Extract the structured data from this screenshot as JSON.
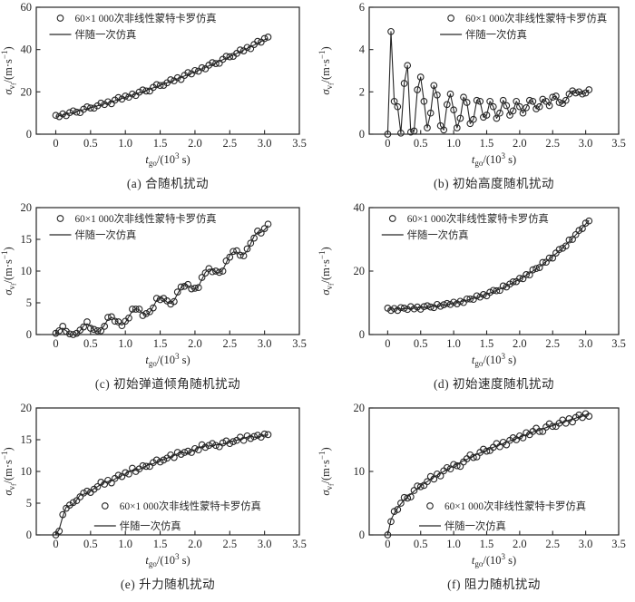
{
  "figure": {
    "background": "#ffffff",
    "ink": "#262626",
    "legend": {
      "mc_label": "60×1 000次非线性蒙特卡罗仿真",
      "adjoint_label": "伴随一次仿真"
    },
    "xlabel_parts": [
      {
        "t": "t",
        "s": "it"
      },
      {
        "t": "go",
        "s": "sub"
      },
      {
        "t": "/(10",
        "s": "n"
      },
      {
        "t": "3",
        "s": "sup"
      },
      {
        "t": " s)",
        "s": "n"
      }
    ],
    "ylabel_parts": [
      {
        "t": "σ",
        "s": "it"
      },
      {
        "t": "v",
        "s": "sub"
      },
      {
        "t": "f",
        "s": "subsub"
      },
      {
        "t": "/(m·s",
        "s": "n"
      },
      {
        "t": "−1",
        "s": "sup"
      },
      {
        "t": ")",
        "s": "n"
      }
    ]
  },
  "x_axis": {
    "xlim": [
      -0.28,
      3.5
    ],
    "xticks": [
      0,
      0.5,
      1,
      1.5,
      2,
      2.5,
      3,
      3.5
    ],
    "xtick_labels": [
      "0",
      "0.5",
      "1.0",
      "1.5",
      "2.0",
      "2.5",
      "3.0",
      "3.5"
    ]
  },
  "x": [
    0,
    0.05,
    0.1,
    0.15,
    0.2,
    0.25,
    0.3,
    0.35,
    0.4,
    0.45,
    0.5,
    0.55,
    0.6,
    0.65,
    0.7,
    0.75,
    0.8,
    0.85,
    0.9,
    0.95,
    1,
    1.05,
    1.1,
    1.15,
    1.2,
    1.25,
    1.3,
    1.35,
    1.4,
    1.45,
    1.5,
    1.55,
    1.6,
    1.65,
    1.7,
    1.75,
    1.8,
    1.85,
    1.9,
    1.95,
    2,
    2.05,
    2.1,
    2.15,
    2.2,
    2.25,
    2.3,
    2.35,
    2.4,
    2.45,
    2.5,
    2.55,
    2.6,
    2.65,
    2.7,
    2.75,
    2.8,
    2.85,
    2.9,
    2.95,
    3,
    3.05
  ],
  "chart_data": [
    {
      "id": "a",
      "type": "line+scatter",
      "caption": "(a) 合随机扰动",
      "xlabel": "t_go/(10^3 s)",
      "ylabel": "σ_vf/(m·s^-1)",
      "ylim": [
        0,
        60
      ],
      "yticks": [
        0,
        20,
        40,
        60
      ],
      "ytick_labels": [
        "0",
        "20",
        "40",
        "60"
      ],
      "legend": {
        "x_frac": 0.05,
        "rows": [
          12,
          30
        ]
      },
      "mc": [
        8.9,
        8.3,
        9.6,
        8.8,
        10.2,
        11.0,
        10.4,
        10.2,
        11.8,
        12.9,
        12.4,
        12.3,
        13.4,
        14.7,
        14.0,
        15.3,
        14.4,
        16.1,
        17.3,
        16.6,
        18.0,
        17.5,
        19.0,
        18.3,
        19.9,
        20.9,
        20.4,
        20.4,
        22.1,
        23.4,
        23.0,
        23.1,
        24.3,
        25.7,
        25.2,
        26.7,
        25.9,
        27.8,
        29.1,
        28.5,
        30.1,
        29.8,
        31.4,
        30.9,
        32.6,
        33.8,
        33.4,
        33.5,
        35.4,
        36.8,
        36.6,
        36.8,
        38.2,
        39.8,
        39.4,
        41.0,
        40.4,
        42.4,
        43.9,
        43.5,
        45.2,
        45.9
      ],
      "adjoint": [
        8.3,
        8.7,
        9.1,
        9.5,
        9.9,
        10.3,
        10.7,
        11.1,
        11.6,
        12.0,
        12.5,
        12.9,
        13.4,
        13.9,
        14.4,
        14.8,
        15.3,
        15.8,
        16.4,
        16.9,
        17.4,
        17.9,
        18.5,
        19.0,
        19.6,
        20.1,
        20.7,
        21.3,
        21.9,
        22.5,
        23.1,
        23.7,
        24.3,
        24.9,
        25.6,
        26.2,
        26.8,
        27.5,
        28.2,
        28.8,
        29.5,
        30.2,
        30.9,
        31.6,
        32.3,
        33.0,
        33.7,
        34.4,
        35.2,
        35.9,
        36.7,
        37.4,
        38.2,
        39.0,
        39.8,
        40.5,
        41.3,
        42.1,
        43.0,
        43.8,
        44.6,
        45.4
      ]
    },
    {
      "id": "b",
      "type": "line+scatter",
      "caption": "(b) 初始高度随机扰动",
      "xlabel": "t_go/(10^3 s)",
      "ylabel": "σ_vf/(m·s^-1)",
      "ylim": [
        0,
        6
      ],
      "yticks": [
        0,
        2,
        4,
        6
      ],
      "ytick_labels": [
        "0",
        "2",
        "4",
        "6"
      ],
      "legend": {
        "x_frac": 0.284,
        "rows": [
          12,
          30
        ]
      },
      "mc": [
        0.0,
        4.85,
        1.55,
        1.3,
        0.05,
        2.4,
        3.25,
        0.1,
        0.15,
        2.1,
        2.7,
        1.55,
        0.3,
        1.0,
        2.3,
        1.85,
        0.4,
        0.2,
        1.4,
        1.9,
        1.15,
        0.3,
        0.75,
        1.75,
        1.5,
        0.5,
        0.7,
        1.6,
        1.55,
        0.8,
        0.9,
        1.55,
        1.3,
        0.75,
        1.0,
        1.6,
        1.35,
        0.9,
        1.1,
        1.55,
        1.3,
        1.0,
        1.25,
        1.6,
        1.55,
        1.2,
        1.3,
        1.65,
        1.55,
        1.35,
        1.75,
        1.8,
        1.5,
        1.45,
        1.6,
        1.9,
        2.05,
        1.95,
        2.0,
        1.9,
        1.95,
        2.1
      ]
    },
    {
      "id": "c",
      "type": "line+scatter",
      "caption": "(c) 初始弹道倾角随机扰动",
      "xlabel": "t_go/(10^3 s)",
      "ylabel": "σ_vf/(m·s^-1)",
      "ylim": [
        0,
        20
      ],
      "yticks": [
        0,
        5,
        10,
        15,
        20
      ],
      "ytick_labels": [
        "0",
        "5",
        "10",
        "15",
        "20"
      ],
      "legend": {
        "x_frac": 0.05,
        "rows": [
          12,
          30
        ]
      },
      "mc": [
        0.2,
        0.6,
        1.3,
        0.5,
        0.1,
        0.0,
        0.2,
        0.7,
        1.2,
        2.0,
        1.0,
        0.8,
        0.6,
        0.6,
        1.3,
        2.7,
        2.8,
        2.1,
        2.0,
        1.4,
        2.1,
        2.6,
        4.0,
        4.0,
        4.0,
        3.0,
        3.3,
        3.6,
        4.2,
        5.7,
        5.5,
        5.7,
        5.3,
        4.8,
        5.2,
        6.7,
        7.5,
        7.6,
        7.9,
        7.2,
        7.3,
        7.4,
        9.0,
        9.7,
        10.4,
        9.9,
        10.0,
        9.8,
        10.0,
        11.6,
        12.2,
        13.1,
        13.2,
        12.5,
        12.4,
        13.5,
        14.4,
        15.2,
        16.3,
        16.0,
        16.7,
        17.4
      ],
      "adjoint": [
        0.0,
        0.8,
        1.0,
        0.6,
        0.0,
        0.0,
        0.0,
        0.6,
        1.4,
        1.7,
        1.3,
        0.7,
        0.4,
        0.7,
        1.5,
        2.4,
        2.7,
        2.4,
        1.8,
        1.5,
        1.9,
        2.8,
        3.7,
        4.1,
        3.9,
        3.3,
        3.1,
        3.5,
        4.4,
        5.4,
        5.8,
        5.6,
        5.1,
        4.9,
        5.4,
        6.4,
        7.4,
        7.9,
        7.7,
        7.3,
        7.1,
        7.6,
        8.7,
        9.8,
        10.3,
        10.2,
        9.8,
        9.7,
        10.2,
        11.3,
        12.5,
        13.0,
        13.0,
        12.6,
        12.6,
        13.2,
        14.3,
        15.5,
        16.1,
        16.1,
        16.5,
        17.2
      ]
    },
    {
      "id": "d",
      "type": "line+scatter",
      "caption": "(d) 初始速度随机扰动",
      "xlabel": "t_go/(10^3 s)",
      "ylabel": "σ_vf/(m·s^-1)",
      "ylim": [
        0,
        40
      ],
      "yticks": [
        0,
        20,
        40
      ],
      "ytick_labels": [
        "0",
        "20",
        "40"
      ],
      "legend": {
        "x_frac": 0.05,
        "rows": [
          12,
          30
        ]
      },
      "mc": [
        8.3,
        7.6,
        8.2,
        7.6,
        8.5,
        8.3,
        7.9,
        8.8,
        8.1,
        8.7,
        8.0,
        8.8,
        9.1,
        8.7,
        8.5,
        9.5,
        8.9,
        9.4,
        9.8,
        9.5,
        10.2,
        9.7,
        10.5,
        10.1,
        11.2,
        11.2,
        11.1,
        12.2,
        11.8,
        12.6,
        12.2,
        13.3,
        13.9,
        13.8,
        13.9,
        15.3,
        15.0,
        15.9,
        16.6,
        16.7,
        17.7,
        17.6,
        18.9,
        18.8,
        20.4,
        20.8,
        21.1,
        22.7,
        22.8,
        24.1,
        24.1,
        25.7,
        26.8,
        27.2,
        27.9,
        29.8,
        30.0,
        31.5,
        32.8,
        33.4,
        35.1,
        35.8
      ],
      "adjoint": [
        8.0,
        8.0,
        8.0,
        8.1,
        8.1,
        8.2,
        8.2,
        8.3,
        8.3,
        8.4,
        8.5,
        8.6,
        8.7,
        8.8,
        8.9,
        9.0,
        9.2,
        9.3,
        9.5,
        9.7,
        9.9,
        10.1,
        10.3,
        10.6,
        10.8,
        11.1,
        11.4,
        11.7,
        12.0,
        12.3,
        12.7,
        13.1,
        13.5,
        13.9,
        14.3,
        14.8,
        15.3,
        15.8,
        16.3,
        16.9,
        17.4,
        18.0,
        18.7,
        19.3,
        20.0,
        20.7,
        21.4,
        22.2,
        23.0,
        23.8,
        24.6,
        25.5,
        26.4,
        27.3,
        28.3,
        29.3,
        30.3,
        31.4,
        32.5,
        33.6,
        34.8,
        36.0
      ]
    },
    {
      "id": "e",
      "type": "line+scatter",
      "caption": "(e) 升力随机扰动",
      "xlabel": "t_go/(10^3 s)",
      "ylabel": "σ_vf/(m·s^-1)",
      "ylim": [
        0,
        20
      ],
      "yticks": [
        0,
        5,
        10,
        15,
        20
      ],
      "ytick_labels": [
        "0",
        "5",
        "10",
        "15",
        "20"
      ],
      "legend": {
        "x_frac": 0.22,
        "rows": [
          108,
          130
        ]
      },
      "mc": [
        0.0,
        0.6,
        3.2,
        4.2,
        4.7,
        5.1,
        5.4,
        6.0,
        6.6,
        6.9,
        6.7,
        7.2,
        7.6,
        8.3,
        8.0,
        8.6,
        8.2,
        8.9,
        9.4,
        9.2,
        9.8,
        9.6,
        10.5,
        10.0,
        10.4,
        10.9,
        10.8,
        10.8,
        11.4,
        11.8,
        11.5,
        11.8,
        12.1,
        12.6,
        12.2,
        13.0,
        12.7,
        13.0,
        13.2,
        13.0,
        13.6,
        13.4,
        14.2,
        13.8,
        14.1,
        14.4,
        14.1,
        13.9,
        14.5,
        14.8,
        14.4,
        14.7,
        14.9,
        15.4,
        14.9,
        15.6,
        15.2,
        15.5,
        15.7,
        15.4,
        15.9,
        15.8
      ],
      "adjoint": [
        0.0,
        0.9,
        2.9,
        4.4,
        4.6,
        4.8,
        5.5,
        6.3,
        6.4,
        6.6,
        6.9,
        7.3,
        7.6,
        8.0,
        8.3,
        8.4,
        8.5,
        8.8,
        9.1,
        9.4,
        9.6,
        9.9,
        10.2,
        10.2,
        10.3,
        10.6,
        10.9,
        11.1,
        11.2,
        11.5,
        11.7,
        11.9,
        12.1,
        12.3,
        12.5,
        12.8,
        13.0,
        12.9,
        12.9,
        13.2,
        13.4,
        13.7,
        13.9,
        14.0,
        14.0,
        14.1,
        14.2,
        14.2,
        14.3,
        14.5,
        14.6,
        14.8,
        14.9,
        15.1,
        15.2,
        15.4,
        15.5,
        15.4,
        15.4,
        15.6,
        15.7,
        15.8
      ]
    },
    {
      "id": "f",
      "type": "line+scatter",
      "caption": "(f) 阻力随机扰动",
      "xlabel": "t_go/(10^3 s)",
      "ylabel": "σ_vf/(m·s^-1)",
      "ylim": [
        0,
        20
      ],
      "yticks": [
        0,
        10,
        20
      ],
      "ytick_labels": [
        "0",
        "10",
        "20"
      ],
      "legend": {
        "x_frac": 0.2,
        "rows": [
          108,
          130
        ]
      },
      "mc": [
        0.0,
        2.1,
        3.7,
        4.0,
        5.0,
        5.9,
        5.8,
        6.0,
        7.0,
        7.7,
        7.6,
        7.8,
        8.4,
        9.2,
        8.8,
        9.6,
        9.3,
        10.1,
        10.6,
        10.4,
        11.1,
        10.9,
        10.8,
        11.5,
        12.0,
        12.6,
        12.2,
        12.3,
        13.0,
        13.5,
        13.2,
        13.3,
        13.8,
        14.4,
        13.9,
        14.6,
        14.2,
        14.9,
        15.3,
        15.0,
        15.6,
        15.3,
        16.1,
        15.8,
        16.3,
        16.8,
        16.3,
        16.3,
        17.0,
        17.5,
        17.1,
        17.1,
        17.6,
        18.1,
        17.6,
        18.3,
        17.8,
        18.5,
        18.9,
        18.5,
        19.1,
        18.7
      ],
      "adjoint": [
        0.0,
        2.4,
        3.4,
        4.2,
        4.9,
        5.5,
        6.0,
        6.4,
        6.9,
        7.3,
        7.7,
        8.1,
        8.4,
        8.8,
        9.1,
        9.4,
        9.7,
        10.0,
        10.3,
        10.6,
        10.9,
        11.2,
        11.4,
        11.7,
        11.9,
        12.2,
        12.4,
        12.7,
        12.9,
        13.1,
        13.3,
        13.6,
        13.8,
        14.0,
        14.2,
        14.4,
        14.6,
        14.8,
        15.0,
        15.2,
        15.4,
        15.6,
        15.8,
        16.0,
        16.2,
        16.4,
        16.5,
        16.7,
        16.9,
        17.1,
        17.2,
        17.4,
        17.6,
        17.7,
        17.9,
        18.1,
        18.2,
        18.4,
        18.6,
        18.7,
        18.9,
        19.0
      ]
    }
  ]
}
